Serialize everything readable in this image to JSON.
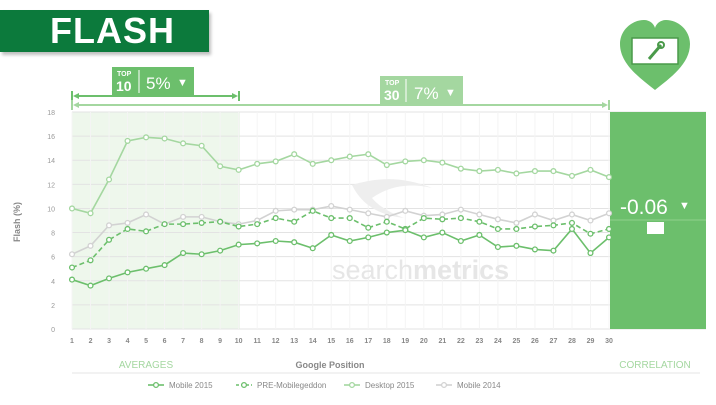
{
  "banner": {
    "title": "FLASH"
  },
  "top10": {
    "prefix": "TOP",
    "rank": "10",
    "value": "5%",
    "arrow": "▼"
  },
  "top30": {
    "prefix": "TOP",
    "rank": "30",
    "value": "7%",
    "arrow": "▼"
  },
  "correlation": {
    "value": "-0.06",
    "arrow": "▼",
    "label": "CORRELATION"
  },
  "labels": {
    "averages": "AVERAGES",
    "watermark_a": "search",
    "watermark_b": "metrics"
  },
  "icon": {
    "name": "toolbox-heart-icon"
  },
  "colors": {
    "green": "#6cbf6c",
    "dark_green": "#0c7a3c",
    "light_green_bg": "#eef7ec",
    "mobile2014": "#d2d2d2"
  },
  "chart_data": {
    "type": "line",
    "xlabel": "Google Position",
    "ylabel": "Flash (%)",
    "ylim": [
      0,
      18
    ],
    "yticks": [
      0,
      2,
      4,
      6,
      8,
      10,
      12,
      14,
      16,
      18
    ],
    "x": [
      1,
      2,
      3,
      4,
      5,
      6,
      7,
      8,
      9,
      10,
      11,
      12,
      13,
      14,
      15,
      16,
      17,
      18,
      19,
      20,
      21,
      22,
      23,
      24,
      25,
      26,
      27,
      28,
      29,
      30
    ],
    "series": [
      {
        "name": "Mobile 2015",
        "style": "solid",
        "color": "#6cbf6c",
        "values": [
          4.1,
          3.6,
          4.2,
          4.7,
          5.0,
          5.3,
          6.3,
          6.2,
          6.5,
          7.0,
          7.1,
          7.3,
          7.2,
          6.7,
          7.8,
          7.3,
          7.6,
          8.0,
          8.2,
          7.6,
          8.0,
          7.3,
          7.8,
          6.8,
          6.9,
          6.6,
          6.5,
          8.3,
          6.3,
          7.6
        ]
      },
      {
        "name": "PRE-Mobilegeddon",
        "style": "dashed",
        "color": "#6cbf6c",
        "values": [
          5.1,
          5.7,
          7.4,
          8.3,
          8.1,
          8.7,
          8.7,
          8.8,
          8.9,
          8.5,
          8.7,
          9.2,
          8.9,
          9.8,
          9.2,
          9.2,
          8.4,
          8.9,
          8.3,
          9.2,
          9.1,
          9.2,
          8.9,
          8.3,
          8.3,
          8.5,
          8.6,
          8.8,
          7.9,
          8.3
        ]
      },
      {
        "name": "Desktop 2015",
        "style": "solid",
        "color": "#a4d7a0",
        "values": [
          10.0,
          9.6,
          12.4,
          15.6,
          15.9,
          15.8,
          15.4,
          15.2,
          13.5,
          13.2,
          13.7,
          13.9,
          14.5,
          13.7,
          14.0,
          14.3,
          14.5,
          13.6,
          13.9,
          14.0,
          13.8,
          13.3,
          13.1,
          13.2,
          12.9,
          13.1,
          13.1,
          12.7,
          13.2,
          12.6
        ]
      },
      {
        "name": "Mobile 2014",
        "style": "solid",
        "color": "#d2d2d2",
        "values": [
          6.2,
          6.9,
          8.6,
          8.8,
          9.5,
          8.7,
          9.3,
          9.3,
          8.9,
          8.7,
          9.0,
          9.8,
          9.9,
          9.9,
          10.2,
          9.9,
          9.6,
          9.3,
          9.8,
          9.4,
          9.5,
          9.9,
          9.5,
          9.1,
          8.8,
          9.5,
          9.0,
          9.5,
          9.0,
          9.6
        ]
      }
    ]
  }
}
